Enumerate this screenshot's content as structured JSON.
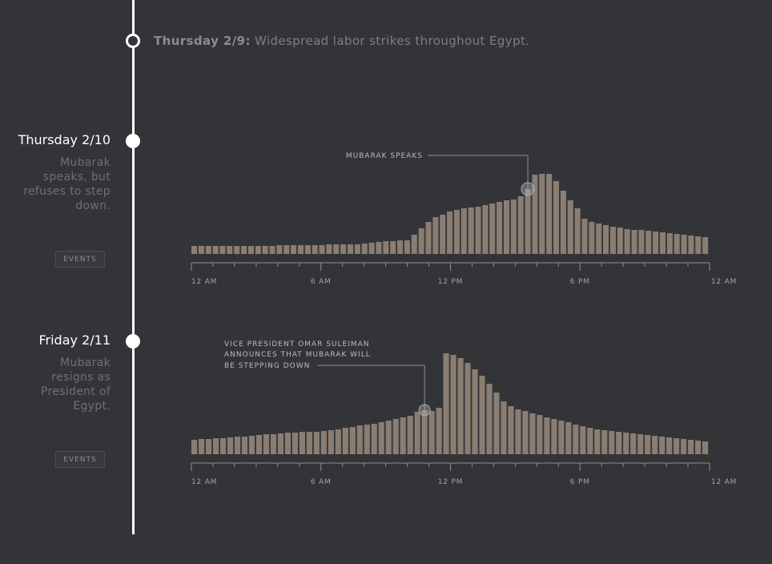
{
  "intro": {
    "day": "Thursday 2/9:",
    "text": "Widespread labor strikes throughout Egypt."
  },
  "sections": [
    {
      "title": "Thursday 2/10",
      "description": "Mubarak speaks, but refuses to step down.",
      "button_label": "EVENTS"
    },
    {
      "title": "Friday 2/11",
      "description": "Mubarak resigns as President of Egypt.",
      "button_label": "EVENTS"
    }
  ],
  "colors": {
    "bar": "#8a7d72",
    "background": "#323438",
    "timeline": "#ffffff",
    "axis": "#8d8f93"
  },
  "chart_data": [
    {
      "type": "bar",
      "xlabel": "",
      "ylabel": "",
      "ylim": [
        0,
        110
      ],
      "tick_labels": [
        "12 AM",
        "6 AM",
        "12 PM",
        "6 PM",
        "12 AM"
      ],
      "annotation": {
        "text": [
          "MUBARAK SPEAKS"
        ],
        "bar_index": 47
      },
      "values": [
        10,
        10,
        10,
        10,
        10,
        10,
        10,
        10,
        10,
        10,
        10,
        10,
        11,
        11,
        11,
        11,
        11,
        11,
        11,
        12,
        12,
        12,
        12,
        12,
        13,
        14,
        15,
        16,
        16,
        17,
        17,
        24,
        32,
        40,
        46,
        49,
        53,
        55,
        57,
        58,
        59,
        61,
        63,
        65,
        67,
        68,
        72,
        81,
        99,
        100,
        100,
        91,
        79,
        67,
        57,
        44,
        40,
        38,
        36,
        34,
        33,
        31,
        30,
        30,
        29,
        28,
        27,
        26,
        25,
        24,
        23,
        22,
        21
      ]
    },
    {
      "type": "bar",
      "xlabel": "",
      "ylabel": "",
      "ylim": [
        0,
        135
      ],
      "tick_labels": [
        "12 AM",
        "6 AM",
        "12 PM",
        "6 PM",
        "12 AM"
      ],
      "annotation": {
        "text": [
          "VICE PRESIDENT OMAR SULEIMAN",
          "ANNOUNCES THAT MUBARAK WILL",
          "BE STEPPING DOWN"
        ],
        "bar_index": 32
      },
      "values": [
        18,
        19,
        19,
        20,
        20,
        21,
        22,
        22,
        23,
        24,
        25,
        25,
        26,
        27,
        27,
        28,
        28,
        28,
        29,
        30,
        31,
        33,
        34,
        36,
        37,
        38,
        40,
        42,
        44,
        46,
        48,
        53,
        55,
        54,
        58,
        126,
        124,
        120,
        114,
        106,
        98,
        88,
        77,
        66,
        60,
        56,
        54,
        51,
        49,
        46,
        44,
        42,
        40,
        37,
        35,
        33,
        31,
        30,
        29,
        28,
        27,
        26,
        25,
        24,
        23,
        22,
        21,
        20,
        19,
        18,
        17,
        16
      ]
    }
  ]
}
